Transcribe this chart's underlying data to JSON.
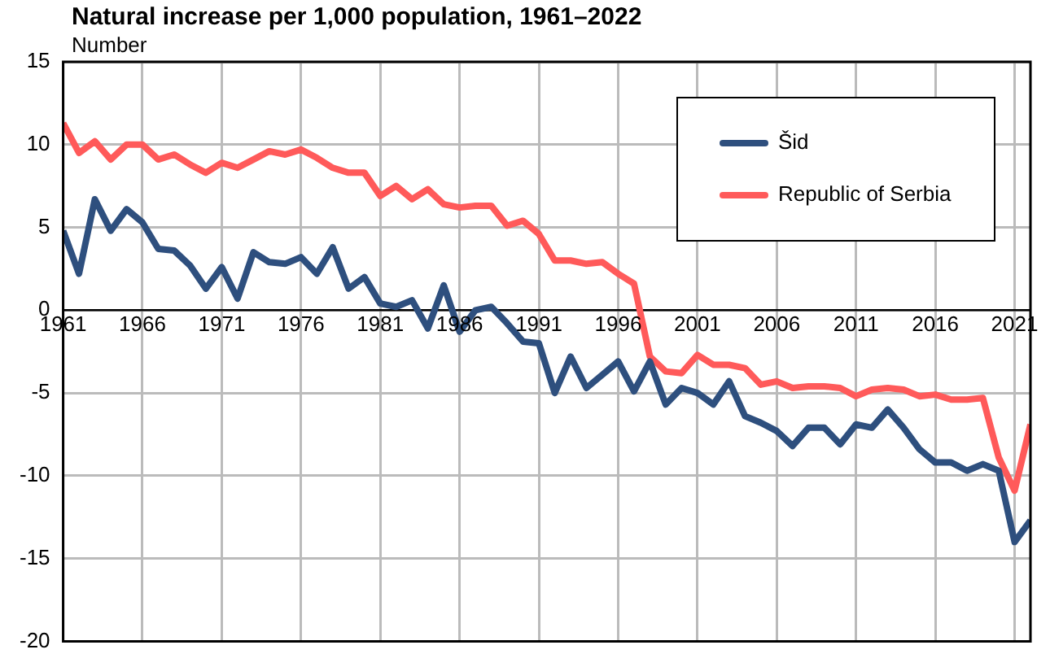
{
  "chart_data": {
    "type": "line",
    "title": "Natural increase per 1,000 population, 1961–2022",
    "ylabel": "Number",
    "x": [
      1961,
      1962,
      1963,
      1964,
      1965,
      1966,
      1967,
      1968,
      1969,
      1970,
      1971,
      1972,
      1973,
      1974,
      1975,
      1976,
      1977,
      1978,
      1979,
      1980,
      1981,
      1982,
      1983,
      1984,
      1985,
      1986,
      1987,
      1988,
      1989,
      1990,
      1991,
      1992,
      1993,
      1994,
      1995,
      1996,
      1997,
      1998,
      1999,
      2000,
      2001,
      2002,
      2003,
      2004,
      2005,
      2006,
      2007,
      2008,
      2009,
      2010,
      2011,
      2012,
      2013,
      2014,
      2015,
      2016,
      2017,
      2018,
      2019,
      2020,
      2021,
      2022
    ],
    "series": [
      {
        "name": "Šid",
        "color": "#2e4f7e",
        "values": [
          4.8,
          2.2,
          6.7,
          4.8,
          6.1,
          5.3,
          3.7,
          3.6,
          2.7,
          1.3,
          2.6,
          0.7,
          3.5,
          2.9,
          2.8,
          3.2,
          2.2,
          3.8,
          1.3,
          2.0,
          0.4,
          0.2,
          0.6,
          -1.1,
          1.5,
          -1.3,
          0.0,
          0.2,
          -0.8,
          -1.9,
          -2.0,
          -5.0,
          -2.8,
          -4.7,
          -3.9,
          -3.1,
          -4.9,
          -3.1,
          -5.7,
          -4.7,
          -5.0,
          -5.7,
          -4.3,
          -6.4,
          -6.8,
          -7.3,
          -8.2,
          -7.1,
          -7.1,
          -8.1,
          -6.9,
          -7.1,
          -6.0,
          -7.1,
          -8.4,
          -9.2,
          -9.2,
          -9.7,
          -9.3,
          -9.7,
          -14.0,
          -12.7
        ]
      },
      {
        "name": "Republic of Serbia",
        "color": "#ff5a5a",
        "values": [
          11.3,
          9.5,
          10.2,
          9.1,
          10.0,
          10.0,
          9.1,
          9.4,
          8.8,
          8.3,
          8.9,
          8.6,
          9.1,
          9.6,
          9.4,
          9.7,
          9.2,
          8.6,
          8.3,
          8.3,
          6.9,
          7.5,
          6.7,
          7.3,
          6.4,
          6.2,
          6.3,
          6.3,
          5.1,
          5.4,
          4.6,
          3.0,
          3.0,
          2.8,
          2.9,
          2.2,
          1.6,
          -2.8,
          -3.7,
          -3.8,
          -2.7,
          -3.3,
          -3.3,
          -3.5,
          -4.5,
          -4.3,
          -4.7,
          -4.6,
          -4.6,
          -4.7,
          -5.2,
          -4.8,
          -4.7,
          -4.8,
          -5.2,
          -5.1,
          -5.4,
          -5.4,
          -5.3,
          -8.9,
          -10.9,
          -6.9
        ]
      }
    ],
    "xlim": [
      1961,
      2022
    ],
    "xticks": [
      1961,
      1966,
      1971,
      1976,
      1981,
      1986,
      1991,
      1996,
      2001,
      2006,
      2011,
      2016,
      2021
    ],
    "ylim": [
      -20,
      15
    ],
    "yticks": [
      -20,
      -15,
      -10,
      -5,
      0,
      5,
      10,
      15
    ],
    "grid": true,
    "legend": "top right",
    "marker": "none",
    "line_style": "solid"
  }
}
